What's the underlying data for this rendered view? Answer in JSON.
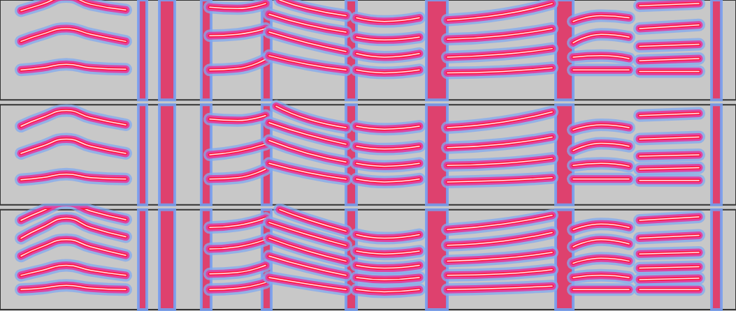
{
  "chart_data": [
    {
      "type": "spectrogram",
      "xlim": [
        0,
        1053
      ],
      "ylim": [
        0,
        140
      ],
      "tick_labels": false,
      "grid": false,
      "color": "#ff1a40",
      "bands": [
        [
          198,
          210
        ],
        [
          228,
          250
        ],
        [
          288,
          302
        ],
        [
          375,
          388
        ],
        [
          495,
          510
        ],
        [
          610,
          640
        ],
        [
          795,
          820
        ],
        [
          1018,
          1032
        ]
      ],
      "tracks": [
        [
          [
            30,
            42
          ],
          [
            60,
            45
          ],
          [
            95,
            50
          ],
          [
            130,
            45
          ],
          [
            180,
            43
          ]
        ],
        [
          [
            30,
            82
          ],
          [
            60,
            92
          ],
          [
            95,
            100
          ],
          [
            130,
            92
          ],
          [
            180,
            82
          ]
        ],
        [
          [
            30,
            125
          ],
          [
            60,
            134
          ],
          [
            95,
            145
          ],
          [
            130,
            134
          ],
          [
            180,
            126
          ]
        ],
        [
          [
            300,
            42
          ],
          [
            340,
            44
          ],
          [
            380,
            57
          ]
        ],
        [
          [
            300,
            90
          ],
          [
            340,
            92
          ],
          [
            380,
            100
          ]
        ],
        [
          [
            300,
            130
          ],
          [
            340,
            128
          ],
          [
            380,
            135
          ]
        ],
        [
          [
            385,
            62
          ],
          [
            440,
            50
          ],
          [
            495,
            42
          ]
        ],
        [
          [
            385,
            95
          ],
          [
            440,
            80
          ],
          [
            495,
            68
          ]
        ],
        [
          [
            385,
            120
          ],
          [
            440,
            105
          ],
          [
            495,
            95
          ]
        ],
        [
          [
            400,
            140
          ],
          [
            440,
            128
          ],
          [
            495,
            118
          ]
        ],
        [
          [
            510,
            42
          ],
          [
            550,
            38
          ],
          [
            600,
            42
          ]
        ],
        [
          [
            510,
            65
          ],
          [
            550,
            60
          ],
          [
            600,
            65
          ]
        ],
        [
          [
            510,
            88
          ],
          [
            550,
            84
          ],
          [
            600,
            88
          ]
        ],
        [
          [
            510,
            115
          ],
          [
            550,
            110
          ],
          [
            600,
            115
          ]
        ],
        [
          [
            640,
            38
          ],
          [
            720,
            40
          ],
          [
            790,
            45
          ]
        ],
        [
          [
            640,
            60
          ],
          [
            720,
            64
          ],
          [
            790,
            72
          ]
        ],
        [
          [
            640,
            85
          ],
          [
            720,
            90
          ],
          [
            790,
            100
          ]
        ],
        [
          [
            640,
            112
          ],
          [
            720,
            120
          ],
          [
            790,
            135
          ]
        ],
        [
          [
            820,
            42
          ],
          [
            900,
            42
          ]
        ],
        [
          [
            820,
            60
          ],
          [
            860,
            62
          ],
          [
            900,
            58
          ]
        ],
        [
          [
            820,
            80
          ],
          [
            860,
            92
          ],
          [
            900,
            88
          ]
        ],
        [
          [
            820,
            110
          ],
          [
            860,
            118
          ],
          [
            900,
            115
          ]
        ],
        [
          [
            915,
            40
          ],
          [
            1000,
            40
          ]
        ],
        [
          [
            915,
            55
          ],
          [
            1000,
            58
          ]
        ],
        [
          [
            915,
            75
          ],
          [
            1000,
            78
          ]
        ],
        [
          [
            915,
            100
          ],
          [
            1000,
            105
          ]
        ],
        [
          [
            915,
            132
          ],
          [
            1000,
            135
          ]
        ]
      ]
    },
    {
      "type": "spectrogram",
      "xlim": [
        0,
        1053
      ],
      "ylim": [
        0,
        140
      ],
      "tick_labels": false,
      "grid": false,
      "color": "#ff1a40",
      "bands": [
        [
          198,
          210
        ],
        [
          228,
          250
        ],
        [
          288,
          302
        ],
        [
          375,
          388
        ],
        [
          495,
          510
        ],
        [
          610,
          640
        ],
        [
          795,
          820
        ],
        [
          1018,
          1032
        ]
      ],
      "tracks": [
        [
          [
            30,
            35
          ],
          [
            60,
            38
          ],
          [
            95,
            43
          ],
          [
            130,
            38
          ],
          [
            180,
            36
          ]
        ],
        [
          [
            30,
            72
          ],
          [
            60,
            82
          ],
          [
            95,
            92
          ],
          [
            130,
            82
          ],
          [
            180,
            72
          ]
        ],
        [
          [
            30,
            110
          ],
          [
            60,
            122
          ],
          [
            95,
            132
          ],
          [
            130,
            122
          ],
          [
            180,
            112
          ]
        ],
        [
          [
            300,
            36
          ],
          [
            340,
            38
          ],
          [
            380,
            50
          ]
        ],
        [
          [
            300,
            70
          ],
          [
            340,
            75
          ],
          [
            380,
            85
          ]
        ],
        [
          [
            300,
            120
          ],
          [
            340,
            118
          ],
          [
            380,
            125
          ]
        ],
        [
          [
            385,
            58
          ],
          [
            440,
            45
          ],
          [
            495,
            36
          ]
        ],
        [
          [
            385,
            90
          ],
          [
            440,
            72
          ],
          [
            495,
            60
          ]
        ],
        [
          [
            385,
            115
          ],
          [
            440,
            98
          ],
          [
            495,
            85
          ]
        ],
        [
          [
            395,
            138
          ],
          [
            440,
            120
          ],
          [
            495,
            108
          ]
        ],
        [
          [
            510,
            36
          ],
          [
            550,
            32
          ],
          [
            600,
            36
          ]
        ],
        [
          [
            510,
            58
          ],
          [
            550,
            54
          ],
          [
            600,
            58
          ]
        ],
        [
          [
            510,
            82
          ],
          [
            550,
            78
          ],
          [
            600,
            82
          ]
        ],
        [
          [
            510,
            110
          ],
          [
            550,
            106
          ],
          [
            600,
            110
          ]
        ],
        [
          [
            640,
            32
          ],
          [
            720,
            34
          ],
          [
            790,
            38
          ]
        ],
        [
          [
            640,
            55
          ],
          [
            720,
            58
          ],
          [
            790,
            65
          ]
        ],
        [
          [
            640,
            80
          ],
          [
            720,
            85
          ],
          [
            790,
            95
          ]
        ],
        [
          [
            640,
            108
          ],
          [
            720,
            116
          ],
          [
            790,
            130
          ]
        ],
        [
          [
            820,
            36
          ],
          [
            900,
            36
          ]
        ],
        [
          [
            820,
            55
          ],
          [
            860,
            58
          ],
          [
            900,
            54
          ]
        ],
        [
          [
            820,
            76
          ],
          [
            860,
            86
          ],
          [
            900,
            82
          ]
        ],
        [
          [
            820,
            105
          ],
          [
            860,
            112
          ],
          [
            900,
            108
          ]
        ],
        [
          [
            915,
            34
          ],
          [
            1000,
            34
          ]
        ],
        [
          [
            915,
            50
          ],
          [
            1000,
            52
          ]
        ],
        [
          [
            915,
            68
          ],
          [
            1000,
            70
          ]
        ],
        [
          [
            915,
            92
          ],
          [
            1000,
            95
          ]
        ],
        [
          [
            915,
            125
          ],
          [
            1000,
            128
          ]
        ]
      ]
    },
    {
      "type": "spectrogram",
      "xlim": [
        0,
        1053
      ],
      "ylim": [
        0,
        140
      ],
      "tick_labels": false,
      "grid": false,
      "color": "#ff1a40",
      "bands": [
        [
          198,
          210
        ],
        [
          228,
          250
        ],
        [
          288,
          302
        ],
        [
          375,
          388
        ],
        [
          495,
          510
        ],
        [
          610,
          640
        ],
        [
          795,
          820
        ],
        [
          1018,
          1032
        ]
      ],
      "tracks": [
        [
          [
            30,
            28
          ],
          [
            60,
            30
          ],
          [
            95,
            34
          ],
          [
            130,
            30
          ],
          [
            180,
            28
          ]
        ],
        [
          [
            30,
            48
          ],
          [
            60,
            55
          ],
          [
            95,
            62
          ],
          [
            130,
            55
          ],
          [
            180,
            48
          ]
        ],
        [
          [
            30,
            75
          ],
          [
            60,
            88
          ],
          [
            95,
            98
          ],
          [
            130,
            88
          ],
          [
            180,
            76
          ]
        ],
        [
          [
            30,
            100
          ],
          [
            60,
            115
          ],
          [
            95,
            128
          ],
          [
            130,
            115
          ],
          [
            180,
            102
          ]
        ],
        [
          [
            30,
            125
          ],
          [
            60,
            138
          ],
          [
            95,
            150
          ],
          [
            130,
            138
          ],
          [
            180,
            126
          ]
        ],
        [
          [
            300,
            28
          ],
          [
            340,
            30
          ],
          [
            380,
            38
          ]
        ],
        [
          [
            300,
            50
          ],
          [
            340,
            52
          ],
          [
            380,
            62
          ]
        ],
        [
          [
            300,
            85
          ],
          [
            340,
            88
          ],
          [
            380,
            98
          ]
        ],
        [
          [
            300,
            115
          ],
          [
            340,
            118
          ],
          [
            380,
            128
          ]
        ],
        [
          [
            385,
            45
          ],
          [
            440,
            36
          ],
          [
            495,
            28
          ]
        ],
        [
          [
            385,
            75
          ],
          [
            440,
            60
          ],
          [
            495,
            48
          ]
        ],
        [
          [
            385,
            100
          ],
          [
            440,
            82
          ],
          [
            495,
            68
          ]
        ],
        [
          [
            385,
            122
          ],
          [
            440,
            105
          ],
          [
            495,
            90
          ]
        ],
        [
          [
            400,
            140
          ],
          [
            440,
            126
          ],
          [
            495,
            110
          ]
        ],
        [
          [
            510,
            28
          ],
          [
            550,
            25
          ],
          [
            600,
            28
          ]
        ],
        [
          [
            510,
            45
          ],
          [
            550,
            42
          ],
          [
            600,
            45
          ]
        ],
        [
          [
            510,
            62
          ],
          [
            550,
            58
          ],
          [
            600,
            62
          ]
        ],
        [
          [
            510,
            82
          ],
          [
            550,
            78
          ],
          [
            600,
            82
          ]
        ],
        [
          [
            510,
            105
          ],
          [
            550,
            100
          ],
          [
            600,
            105
          ]
        ],
        [
          [
            640,
            28
          ],
          [
            720,
            30
          ],
          [
            790,
            33
          ]
        ],
        [
          [
            640,
            48
          ],
          [
            720,
            50
          ],
          [
            790,
            56
          ]
        ],
        [
          [
            640,
            68
          ],
          [
            720,
            72
          ],
          [
            790,
            80
          ]
        ],
        [
          [
            640,
            90
          ],
          [
            720,
            96
          ],
          [
            790,
            108
          ]
        ],
        [
          [
            640,
            112
          ],
          [
            720,
            120
          ],
          [
            790,
            132
          ]
        ],
        [
          [
            820,
            28
          ],
          [
            900,
            28
          ]
        ],
        [
          [
            820,
            45
          ],
          [
            860,
            48
          ],
          [
            900,
            45
          ]
        ],
        [
          [
            820,
            65
          ],
          [
            860,
            72
          ],
          [
            900,
            68
          ]
        ],
        [
          [
            820,
            88
          ],
          [
            860,
            98
          ],
          [
            900,
            92
          ]
        ],
        [
          [
            820,
            112
          ],
          [
            860,
            120
          ],
          [
            900,
            115
          ]
        ],
        [
          [
            915,
            28
          ],
          [
            1000,
            28
          ]
        ],
        [
          [
            915,
            42
          ],
          [
            1000,
            44
          ]
        ],
        [
          [
            915,
            58
          ],
          [
            1000,
            60
          ]
        ],
        [
          [
            915,
            78
          ],
          [
            1000,
            80
          ]
        ],
        [
          [
            915,
            100
          ],
          [
            1000,
            104
          ]
        ],
        [
          [
            915,
            125
          ],
          [
            1000,
            130
          ]
        ]
      ]
    }
  ]
}
